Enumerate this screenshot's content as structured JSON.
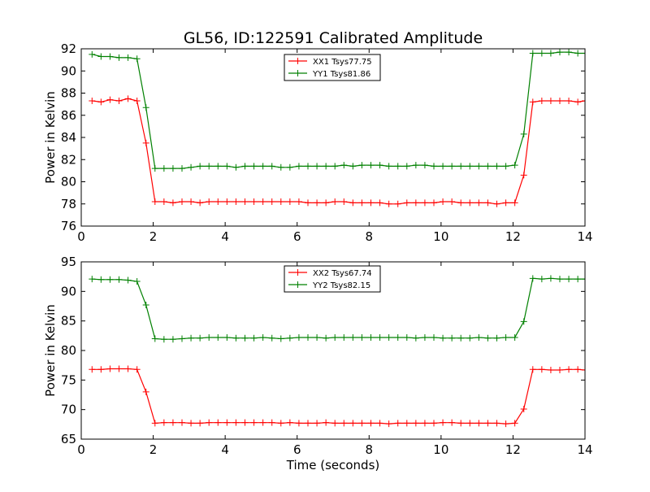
{
  "figure": {
    "title": "GL56, ID:122591 Calibrated Amplitude"
  },
  "chart_data": [
    {
      "type": "line",
      "title": "GL56, ID:122591 Calibrated Amplitude",
      "xlabel": "",
      "ylabel": "Power in Kelvin",
      "xlim": [
        0,
        14
      ],
      "ylim": [
        76,
        92
      ],
      "x_ticks": [
        "0",
        "2",
        "4",
        "6",
        "8",
        "10",
        "12",
        "14"
      ],
      "y_ticks": [
        "76",
        "78",
        "80",
        "82",
        "84",
        "86",
        "88",
        "90",
        "92"
      ],
      "grid": false,
      "legend_position": "top-center",
      "marker": "plus",
      "x": [
        0.3,
        0.55,
        0.8,
        1.05,
        1.3,
        1.55,
        1.8,
        2.05,
        2.3,
        2.55,
        2.8,
        3.05,
        3.3,
        3.55,
        3.8,
        4.05,
        4.3,
        4.55,
        4.8,
        5.05,
        5.3,
        5.55,
        5.8,
        6.05,
        6.3,
        6.55,
        6.8,
        7.05,
        7.3,
        7.55,
        7.8,
        8.05,
        8.3,
        8.55,
        8.8,
        9.05,
        9.3,
        9.55,
        9.8,
        10.05,
        10.3,
        10.55,
        10.8,
        11.05,
        11.3,
        11.55,
        11.8,
        12.05,
        12.3,
        12.55,
        12.8,
        13.05,
        13.3,
        13.55,
        13.8,
        14.0
      ],
      "series": [
        {
          "name": "XX1 Tsys77.75",
          "color": "#ff0000",
          "values": [
            87.3,
            87.2,
            87.4,
            87.3,
            87.5,
            87.3,
            83.5,
            78.2,
            78.2,
            78.1,
            78.2,
            78.2,
            78.1,
            78.2,
            78.2,
            78.2,
            78.2,
            78.2,
            78.2,
            78.2,
            78.2,
            78.2,
            78.2,
            78.2,
            78.1,
            78.1,
            78.1,
            78.2,
            78.2,
            78.1,
            78.1,
            78.1,
            78.1,
            78.0,
            78.0,
            78.1,
            78.1,
            78.1,
            78.1,
            78.2,
            78.2,
            78.1,
            78.1,
            78.1,
            78.1,
            78.0,
            78.1,
            78.1,
            80.6,
            87.2,
            87.3,
            87.3,
            87.3,
            87.3,
            87.2,
            87.3
          ]
        },
        {
          "name": "YY1 Tsys81.86",
          "color": "#008000",
          "values": [
            91.5,
            91.3,
            91.3,
            91.2,
            91.2,
            91.1,
            86.7,
            81.2,
            81.2,
            81.2,
            81.2,
            81.3,
            81.4,
            81.4,
            81.4,
            81.4,
            81.3,
            81.4,
            81.4,
            81.4,
            81.4,
            81.3,
            81.3,
            81.4,
            81.4,
            81.4,
            81.4,
            81.4,
            81.5,
            81.4,
            81.5,
            81.5,
            81.5,
            81.4,
            81.4,
            81.4,
            81.5,
            81.5,
            81.4,
            81.4,
            81.4,
            81.4,
            81.4,
            81.4,
            81.4,
            81.4,
            81.4,
            81.5,
            84.3,
            91.6,
            91.6,
            91.6,
            91.7,
            91.7,
            91.6,
            91.6
          ]
        }
      ]
    },
    {
      "type": "line",
      "title": "",
      "xlabel": "Time (seconds)",
      "ylabel": "Power in Kelvin",
      "xlim": [
        0,
        14
      ],
      "ylim": [
        65,
        95
      ],
      "x_ticks": [
        "0",
        "2",
        "4",
        "6",
        "8",
        "10",
        "12",
        "14"
      ],
      "y_ticks": [
        "65",
        "70",
        "75",
        "80",
        "85",
        "90",
        "95"
      ],
      "grid": false,
      "legend_position": "top-center",
      "marker": "plus",
      "x": [
        0.3,
        0.55,
        0.8,
        1.05,
        1.3,
        1.55,
        1.8,
        2.05,
        2.3,
        2.55,
        2.8,
        3.05,
        3.3,
        3.55,
        3.8,
        4.05,
        4.3,
        4.55,
        4.8,
        5.05,
        5.3,
        5.55,
        5.8,
        6.05,
        6.3,
        6.55,
        6.8,
        7.05,
        7.3,
        7.55,
        7.8,
        8.05,
        8.3,
        8.55,
        8.8,
        9.05,
        9.3,
        9.55,
        9.8,
        10.05,
        10.3,
        10.55,
        10.8,
        11.05,
        11.3,
        11.55,
        11.8,
        12.05,
        12.3,
        12.55,
        12.8,
        13.05,
        13.3,
        13.55,
        13.8,
        14.0
      ],
      "series": [
        {
          "name": "XX2 Tsys67.74",
          "color": "#ff0000",
          "values": [
            76.8,
            76.8,
            76.9,
            76.9,
            76.9,
            76.8,
            73.0,
            67.7,
            67.8,
            67.8,
            67.8,
            67.7,
            67.7,
            67.8,
            67.8,
            67.8,
            67.8,
            67.8,
            67.8,
            67.8,
            67.8,
            67.7,
            67.8,
            67.7,
            67.7,
            67.7,
            67.8,
            67.7,
            67.7,
            67.7,
            67.7,
            67.7,
            67.7,
            67.6,
            67.7,
            67.7,
            67.7,
            67.7,
            67.7,
            67.8,
            67.8,
            67.7,
            67.7,
            67.7,
            67.7,
            67.7,
            67.6,
            67.7,
            70.1,
            76.8,
            76.8,
            76.7,
            76.7,
            76.8,
            76.8,
            76.7
          ]
        },
        {
          "name": "YY2 Tsys82.15",
          "color": "#008000",
          "values": [
            92.1,
            92.0,
            92.0,
            92.0,
            91.9,
            91.7,
            87.7,
            82.0,
            81.9,
            81.9,
            82.0,
            82.1,
            82.1,
            82.2,
            82.2,
            82.2,
            82.1,
            82.1,
            82.1,
            82.2,
            82.1,
            82.0,
            82.1,
            82.2,
            82.2,
            82.2,
            82.1,
            82.2,
            82.2,
            82.2,
            82.2,
            82.2,
            82.2,
            82.2,
            82.2,
            82.2,
            82.1,
            82.2,
            82.2,
            82.1,
            82.1,
            82.1,
            82.1,
            82.2,
            82.1,
            82.1,
            82.2,
            82.2,
            84.9,
            92.2,
            92.1,
            92.2,
            92.1,
            92.1,
            92.1,
            92.1
          ]
        }
      ]
    }
  ]
}
